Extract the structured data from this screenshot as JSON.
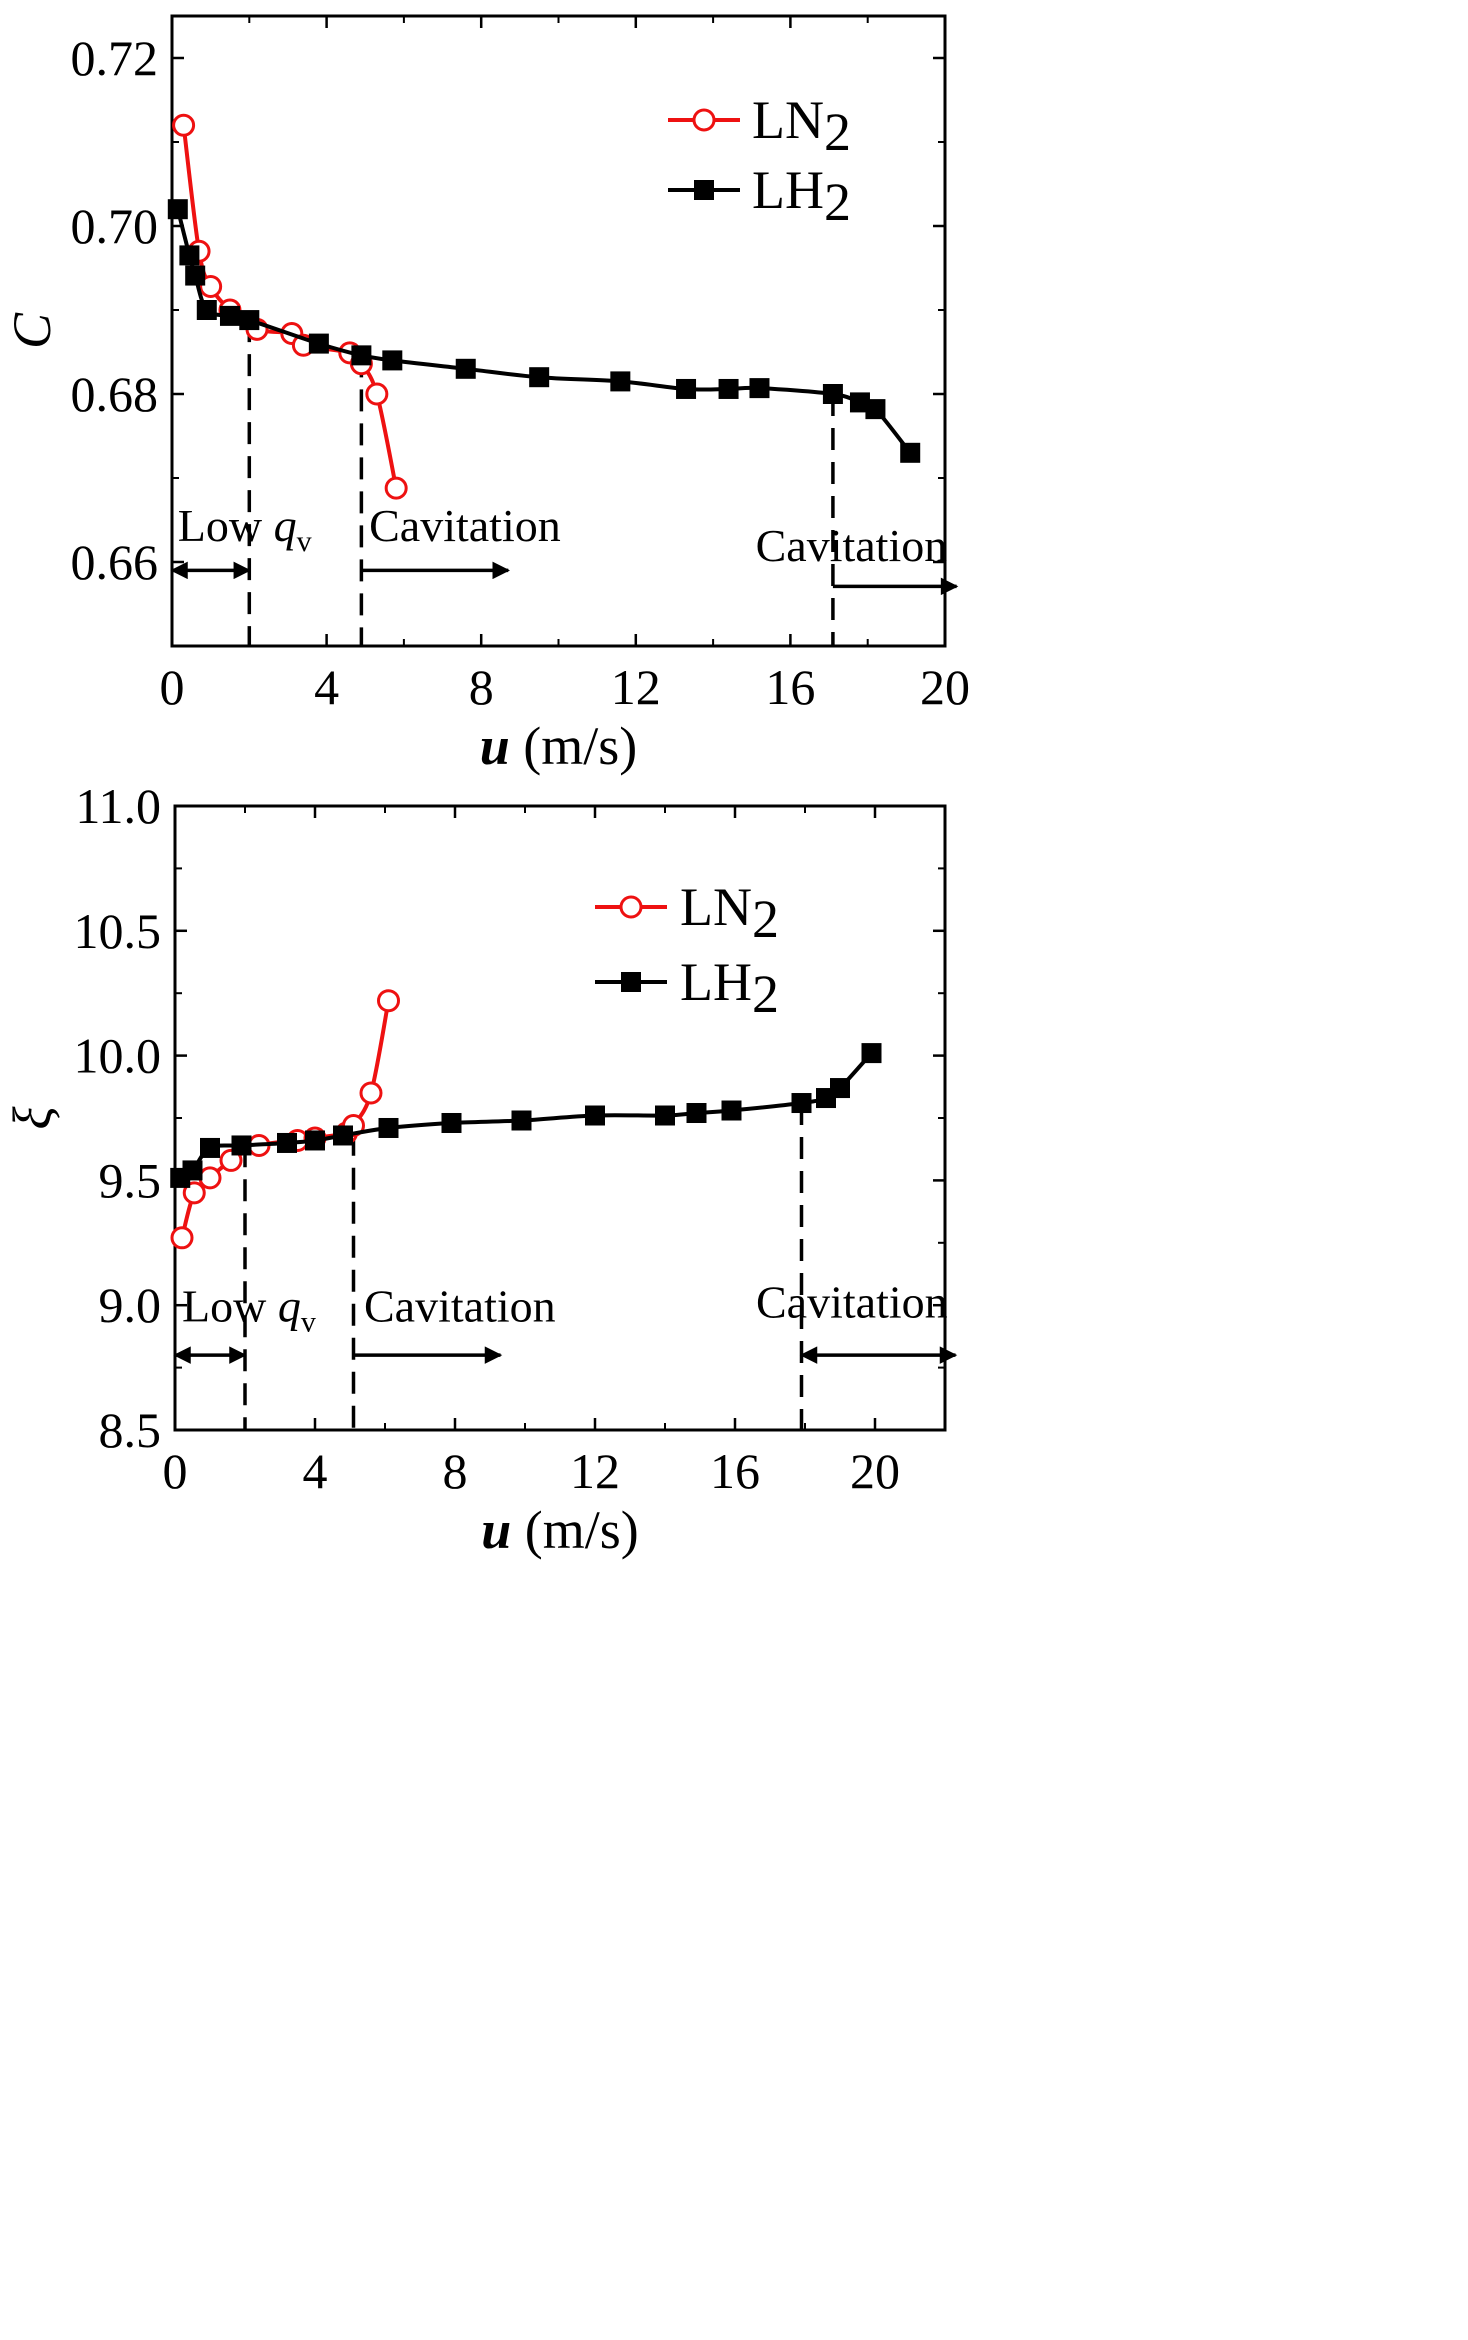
{
  "colors": {
    "ln2": "#ee1111",
    "lh2": "#000000",
    "axis": "#000000",
    "background": "#ffffff"
  },
  "chart_data": [
    {
      "id": "top",
      "type": "line",
      "title": "",
      "xlabel_var": "u",
      "xlabel_unit": "(m/s)",
      "ylabel": "C",
      "xlim": [
        0,
        20
      ],
      "ylim": [
        0.65,
        0.725
      ],
      "xticks": [
        0,
        4,
        8,
        12,
        16,
        20
      ],
      "xtick_labels": [
        "0",
        "4",
        "8",
        "12",
        "16",
        "20"
      ],
      "yticks": [
        0.66,
        0.68,
        0.7,
        0.72
      ],
      "ytick_labels": [
        "0.66",
        "0.68",
        "0.70",
        "0.72"
      ],
      "legend_position": "top-right",
      "series": [
        {
          "name": "LN2",
          "label_main": "LN",
          "label_sub": "2",
          "marker": "open-circle",
          "x": [
            0.3,
            0.7,
            1.0,
            1.5,
            2.2,
            3.1,
            3.4,
            4.6,
            4.9,
            5.3,
            5.8
          ],
          "y": [
            0.712,
            0.697,
            0.6928,
            0.69,
            0.6877,
            0.6872,
            0.6858,
            0.6849,
            0.6836,
            0.68,
            0.6688
          ]
        },
        {
          "name": "LH2",
          "label_main": "LH",
          "label_sub": "2",
          "marker": "filled-square",
          "x": [
            0.15,
            0.45,
            0.6,
            0.9,
            1.5,
            2.0,
            3.8,
            4.9,
            5.7,
            7.6,
            9.5,
            11.6,
            13.3,
            14.4,
            15.2,
            17.1,
            17.8,
            18.2,
            19.1
          ],
          "y": [
            0.702,
            0.6965,
            0.6941,
            0.69,
            0.6893,
            0.6888,
            0.686,
            0.6846,
            0.684,
            0.683,
            0.682,
            0.6815,
            0.6806,
            0.6806,
            0.6807,
            0.68,
            0.679,
            0.6782,
            0.673
          ]
        }
      ],
      "dashed_lines_x": [
        2.0,
        4.9,
        17.1
      ],
      "annotations": [
        {
          "text": "Low ",
          "var": "q",
          "sub": "v",
          "x": 0.15,
          "y": 0.6625
        },
        {
          "text": "Cavitation",
          "x": 5.1,
          "y": 0.6625
        },
        {
          "text": "Cavitation",
          "x": 15.1,
          "y": 0.6601
        }
      ],
      "arrows": [
        {
          "from": 0.0,
          "to": 2.0,
          "y": 0.659,
          "style": "double"
        },
        {
          "from": 4.9,
          "to": 8.7,
          "y": 0.659,
          "style": "right"
        },
        {
          "from": 17.1,
          "to": 20.3,
          "y": 0.6571,
          "style": "right"
        }
      ]
    },
    {
      "id": "bottom",
      "type": "line",
      "title": "",
      "xlabel_var": "u",
      "xlabel_unit": "(m/s)",
      "ylabel": "ξ",
      "xlim": [
        0,
        22
      ],
      "ylim": [
        8.5,
        11.0
      ],
      "xticks": [
        0,
        4,
        8,
        12,
        16,
        20
      ],
      "xtick_labels": [
        "0",
        "4",
        "8",
        "12",
        "16",
        "20"
      ],
      "yticks": [
        8.5,
        9.0,
        9.5,
        10.0,
        10.5,
        11.0
      ],
      "ytick_labels": [
        "8.5",
        "9.0",
        "9.5",
        "10.0",
        "10.5",
        "11.0"
      ],
      "legend_position": "top-right",
      "series": [
        {
          "name": "LN2",
          "label_main": "LN",
          "label_sub": "2",
          "marker": "open-circle",
          "x": [
            0.2,
            0.55,
            1.0,
            1.6,
            2.4,
            3.5,
            4.0,
            4.9,
            5.1,
            5.6,
            6.1
          ],
          "y": [
            9.27,
            9.45,
            9.51,
            9.58,
            9.64,
            9.66,
            9.67,
            9.69,
            9.72,
            9.85,
            10.22
          ]
        },
        {
          "name": "LH2",
          "label_main": "LH",
          "label_sub": "2",
          "marker": "filled-square",
          "x": [
            0.15,
            0.5,
            1.0,
            1.9,
            3.2,
            4.0,
            4.8,
            6.1,
            7.9,
            9.9,
            12.0,
            14.0,
            14.9,
            15.9,
            17.9,
            18.6,
            19.0,
            19.9
          ],
          "y": [
            9.51,
            9.54,
            9.63,
            9.64,
            9.65,
            9.66,
            9.68,
            9.71,
            9.73,
            9.74,
            9.76,
            9.76,
            9.77,
            9.78,
            9.81,
            9.83,
            9.87,
            10.01
          ]
        }
      ],
      "dashed_lines_x": [
        2.0,
        5.1,
        17.9
      ],
      "annotations": [
        {
          "text": "Low ",
          "var": "q",
          "sub": "v",
          "x": 0.2,
          "y": 8.935
        },
        {
          "text": "Cavitation",
          "x": 5.4,
          "y": 8.935
        },
        {
          "text": "Cavitation",
          "x": 16.6,
          "y": 8.95
        }
      ],
      "arrows": [
        {
          "from": 0.0,
          "to": 2.0,
          "y": 8.8,
          "style": "double"
        },
        {
          "from": 5.1,
          "to": 9.3,
          "y": 8.8,
          "style": "right"
        },
        {
          "from": 17.9,
          "to": 22.3,
          "y": 8.8,
          "style": "double"
        }
      ]
    }
  ]
}
